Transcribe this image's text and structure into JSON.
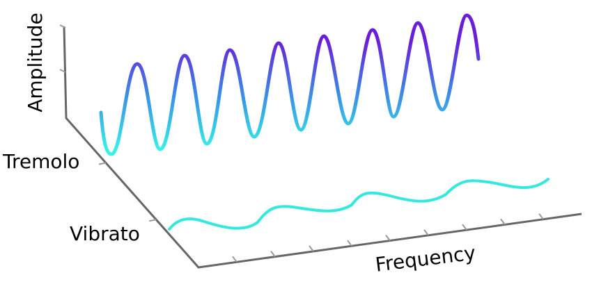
{
  "axes": {
    "amplitude": "Amplitude",
    "frequency": "Frequency"
  },
  "waves": {
    "tremolo": "Tremolo",
    "vibrato": "Vibrato"
  }
}
